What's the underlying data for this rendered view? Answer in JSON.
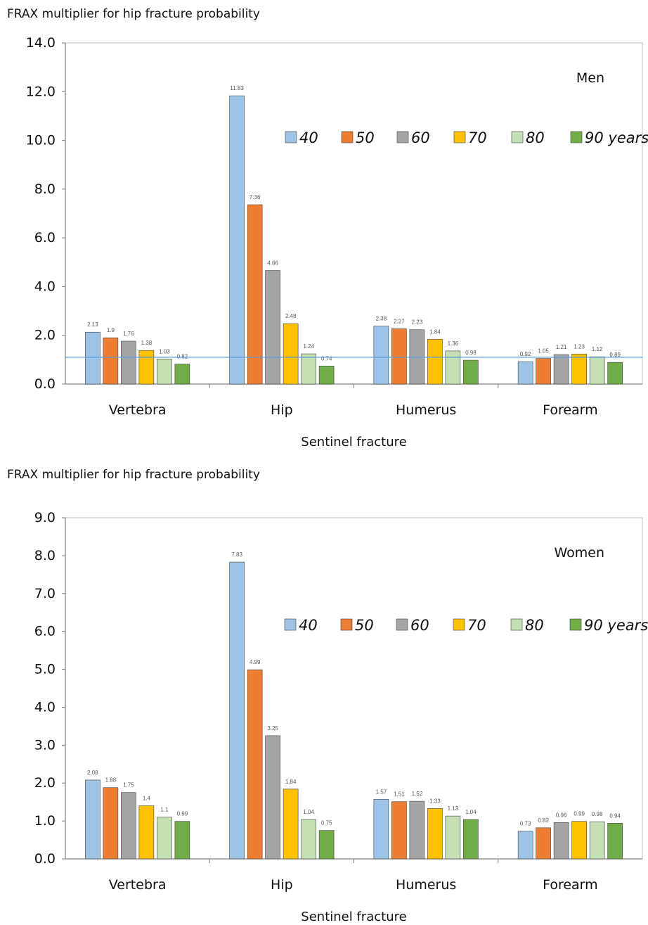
{
  "series_colors": [
    "#9dc3e6",
    "#ed7d31",
    "#a5a5a5",
    "#ffc000",
    "#c5e0b4",
    "#70ad47"
  ],
  "chart_data": [
    {
      "type": "bar",
      "title": "FRAX multiplier for hip fracture probability",
      "panel_label": "Men",
      "xlabel": "Sentinel fracture",
      "ylabel": "",
      "ylim": [
        0,
        14
      ],
      "yticks": [
        "0.0",
        "2.0",
        "4.0",
        "6.0",
        "8.0",
        "10.0",
        "12.0",
        "14.0"
      ],
      "reference_line": 1.1,
      "legend_position": "top-right",
      "categories": [
        "Vertebra",
        "Hip",
        "Humerus",
        "Forearm"
      ],
      "series": [
        {
          "name": "40",
          "values": [
            2.13,
            11.83,
            2.38,
            0.92
          ],
          "labels": [
            "2.13",
            "11.83",
            "2.38",
            "0.92"
          ]
        },
        {
          "name": "50",
          "values": [
            1.9,
            7.36,
            2.27,
            1.05
          ],
          "labels": [
            "1.9",
            "7.36",
            "2.27",
            "1.05"
          ]
        },
        {
          "name": "60",
          "values": [
            1.76,
            4.66,
            2.23,
            1.21
          ],
          "labels": [
            "1.76",
            "4.66",
            "2.23",
            "1.21"
          ]
        },
        {
          "name": "70",
          "values": [
            1.38,
            2.48,
            1.84,
            1.23
          ],
          "labels": [
            "1.38",
            "2.48",
            "1.84",
            "1.23"
          ]
        },
        {
          "name": "80",
          "values": [
            1.03,
            1.24,
            1.36,
            1.12
          ],
          "labels": [
            "1.03",
            "1.24",
            "1.36",
            "1.12"
          ]
        },
        {
          "name": "90 years",
          "values": [
            0.82,
            0.74,
            0.98,
            0.89
          ],
          "labels": [
            "0.82",
            "0.74",
            "0.98",
            "0.89"
          ]
        }
      ]
    },
    {
      "type": "bar",
      "title": "FRAX multiplier for hip fracture probability",
      "panel_label": "Women",
      "xlabel": "Sentinel fracture",
      "ylabel": "",
      "ylim": [
        0,
        9
      ],
      "yticks": [
        "0.0",
        "1.0",
        "2.0",
        "3.0",
        "4.0",
        "5.0",
        "6.0",
        "7.0",
        "8.0",
        "9.0"
      ],
      "reference_line": null,
      "legend_position": "top-right",
      "categories": [
        "Vertebra",
        "Hip",
        "Humerus",
        "Forearm"
      ],
      "series": [
        {
          "name": "40",
          "values": [
            2.08,
            7.83,
            1.57,
            0.73
          ],
          "labels": [
            "2.08",
            "7.83",
            "1.57",
            "0.73"
          ]
        },
        {
          "name": "50",
          "values": [
            1.88,
            4.99,
            1.51,
            0.82
          ],
          "labels": [
            "1.88",
            "4.99",
            "1.51",
            "0.82"
          ]
        },
        {
          "name": "60",
          "values": [
            1.75,
            3.25,
            1.52,
            0.96
          ],
          "labels": [
            "1.75",
            "3.25",
            "1.52",
            "0.96"
          ]
        },
        {
          "name": "70",
          "values": [
            1.4,
            1.84,
            1.33,
            0.99
          ],
          "labels": [
            "1.4",
            "1.84",
            "1.33",
            "0.99"
          ]
        },
        {
          "name": "80",
          "values": [
            1.1,
            1.04,
            1.13,
            0.98
          ],
          "labels": [
            "1.1",
            "1.04",
            "1.13",
            "0.98"
          ]
        },
        {
          "name": "90 years",
          "values": [
            0.99,
            0.75,
            1.04,
            0.94
          ],
          "labels": [
            "0.99",
            "0.75",
            "1.04",
            "0.94"
          ]
        }
      ]
    }
  ]
}
